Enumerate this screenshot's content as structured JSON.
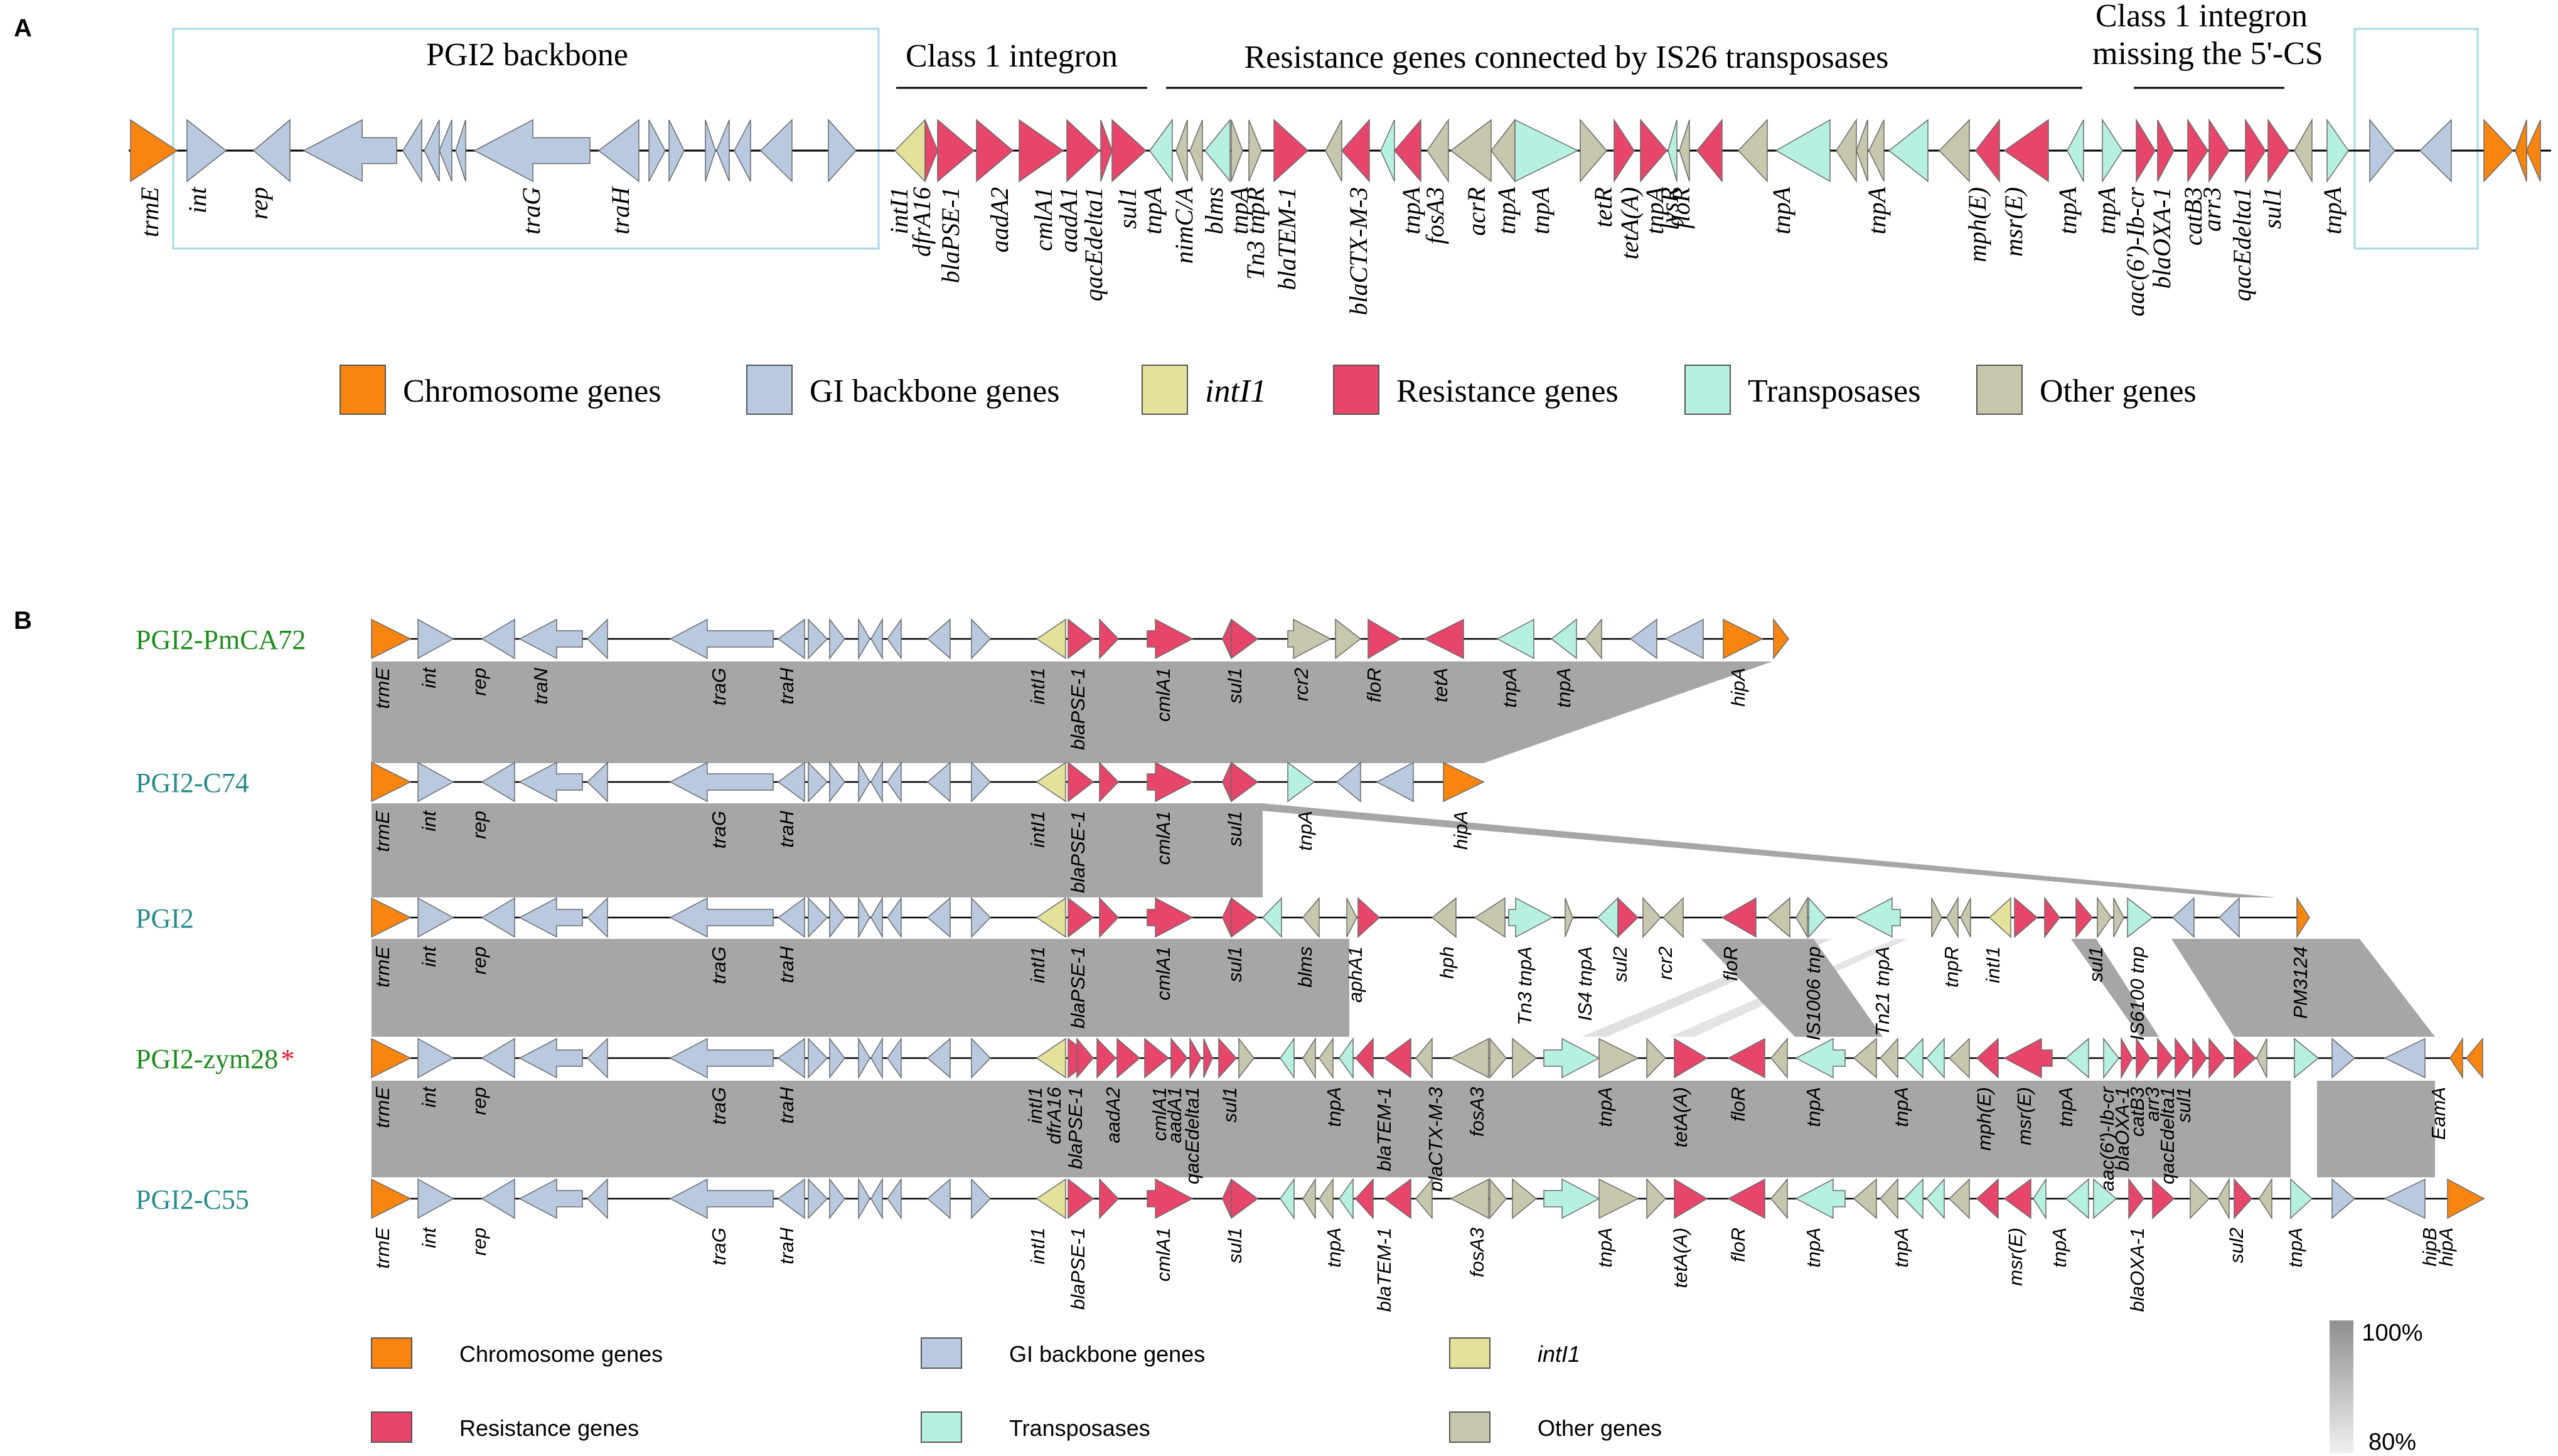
{
  "colors": {
    "chromosome": "#F8850F",
    "backbone": "#B8C9E0",
    "intI1": "#E4E29A",
    "resistance": "#E8456A",
    "transposase": "#B6F0E0",
    "other": "#C6C7AC",
    "homology": "#A6A6A6",
    "line": "#000000",
    "strain_green": "#1E8C1E",
    "strain_teal": "#2A8C8C",
    "star": "#E8162A",
    "box_outline": "#A8D8E8"
  },
  "panelA": {
    "letter": "A",
    "groups": {
      "backbone": "PGI2 backbone",
      "class1": "Class 1 integron",
      "is26": "Resistance genes connected by IS26 transposases",
      "missing_line1": "Class 1 integron",
      "missing_line2": "missing the 5'-CS"
    },
    "gene_labels": [
      "trmE",
      "int",
      "rep",
      "traG",
      "traH",
      "intI1",
      "dfrA16",
      "blaPSE-1",
      "aadA2",
      "cmlA1",
      "aadA1",
      "qacEdelta1",
      "sul1",
      "tnpA",
      "nimC/A",
      "blms",
      "tnpA",
      "Tn3 tnpR",
      "blaTEM-1",
      "blaCTX-M-3",
      "tnpA",
      "fosA3",
      "acrR",
      "tnpA",
      "tnpA",
      "tetR",
      "tetA(A)",
      "tnpA",
      "lysR",
      "floR",
      "tnpA",
      "tnpA",
      "mph(E)",
      "msr(E)",
      "tnpA",
      "tnpA",
      "aac(6')-Ib-cr",
      "blaOXA-1",
      "catB3",
      "arr3",
      "qacEdelta1",
      "sul1",
      "tnpA"
    ],
    "legend": {
      "chromosome": "Chromosome genes",
      "backbone": "GI backbone genes",
      "intI1": "intI1",
      "resistance": "Resistance genes",
      "transposase": "Transposases",
      "other": "Other genes"
    }
  },
  "panelB": {
    "letter": "B",
    "strains": [
      {
        "name": "PGI2-PmCA72",
        "star": ""
      },
      {
        "name": "PGI2-C74",
        "star": ""
      },
      {
        "name": "PGI2",
        "star": ""
      },
      {
        "name": "PGI2-zym28",
        "star": "*"
      },
      {
        "name": "PGI2-C55",
        "star": ""
      }
    ],
    "row_labels": [
      [
        "trmE",
        "int",
        "rep",
        "traN",
        "traG",
        "traH",
        "intI1",
        "blaPSE-1",
        "cmlA1",
        "sul1",
        "rcr2",
        "floR",
        "tetA",
        "tnpA",
        "tnpA",
        "hipA"
      ],
      [
        "trmE",
        "int",
        "rep",
        "traG",
        "traH",
        "intI1",
        "blaPSE-1",
        "cmlA1",
        "sul1",
        "tnpA",
        "hipA"
      ],
      [
        "trmE",
        "int",
        "rep",
        "traG",
        "traH",
        "intI1",
        "blaPSE-1",
        "cmlA1",
        "sul1",
        "blms",
        "aphA1",
        "hph",
        "Tn3 tnpA",
        "IS4 tnpA",
        "sul2",
        "rcr2",
        "floR",
        "IS1006 tnp",
        "Tn21 tnpA",
        "tnpR",
        "intI1",
        "sul1",
        "IS6100 tnp",
        "PM3124"
      ],
      [
        "trmE",
        "int",
        "rep",
        "traG",
        "traH",
        "intI1",
        "dfrA16",
        "blaPSE-1",
        "aadA2",
        "cmlA1",
        "aadA1",
        "qacEdelta1",
        "sul1",
        "tnpA",
        "blaTEM-1",
        "blaCTX-M-3",
        "fosA3",
        "tnpA",
        "tetA(A)",
        "floR",
        "tnpA",
        "tnpA",
        "mph(E)",
        "msr(E)",
        "tnpA",
        "aac(6')-Ib-cr",
        "blaOXA-1",
        "catB3",
        "arr3",
        "qacEdelta1",
        "sul1",
        "EamA"
      ],
      [
        "trmE",
        "int",
        "rep",
        "traG",
        "traH",
        "intI1",
        "blaPSE-1",
        "cmlA1",
        "sul1",
        "tnpA",
        "blaTEM-1",
        "fosA3",
        "tnpA",
        "tetA(A)",
        "floR",
        "tnpA",
        "tnpA",
        "msr(E)",
        "tnpA",
        "blaOXA-1",
        "sul2",
        "tnpA",
        "hipB",
        "hipA"
      ]
    ],
    "legend": {
      "chromosome": "Chromosome genes",
      "backbone": "GI backbone genes",
      "intI1": "intI1",
      "resistance": "Resistance genes",
      "transposase": "Transposases",
      "other": "Other genes"
    },
    "scale_max": "100%",
    "scale_min": "80%"
  }
}
